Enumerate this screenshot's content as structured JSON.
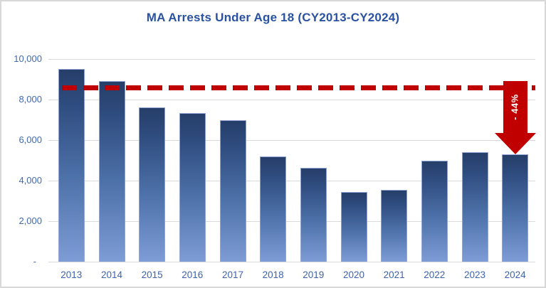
{
  "colors": {
    "title": "#2A52A2",
    "axis_tick": "#4169B2",
    "x_tick": "#3E63AE",
    "bar_gradient_top": "#263E69",
    "bar_gradient_bottom": "#7E9CD6",
    "reference_red": "#C00000",
    "gridline": "#D9D9D9",
    "frame_border": "#D8D8D8",
    "annotation_text": "#FFFFFF"
  },
  "chart_data": {
    "type": "bar",
    "title": "MA Arrests Under Age 18 (CY2013-CY2024)",
    "categories": [
      "2013",
      "2014",
      "2015",
      "2016",
      "2017",
      "2018",
      "2019",
      "2020",
      "2021",
      "2022",
      "2023",
      "2024"
    ],
    "values": [
      9500,
      8900,
      7600,
      7350,
      7000,
      5200,
      4650,
      3450,
      3550,
      5000,
      5400,
      5300
    ],
    "xlabel": "",
    "ylabel": "",
    "ylim": [
      0,
      10000
    ],
    "ytick_interval": 2000,
    "ytick_labels_bottom_to_top": [
      "-",
      "2,000",
      "4,000",
      "6,000",
      "8,000",
      "10,000"
    ],
    "grid": true,
    "legend": false,
    "reference_line": {
      "value": 8700,
      "style": "dashed",
      "color": "#C00000"
    },
    "annotation": {
      "label": "- 44%",
      "shape": "down-arrow",
      "from_value": 8700,
      "to_category": "2024"
    }
  }
}
